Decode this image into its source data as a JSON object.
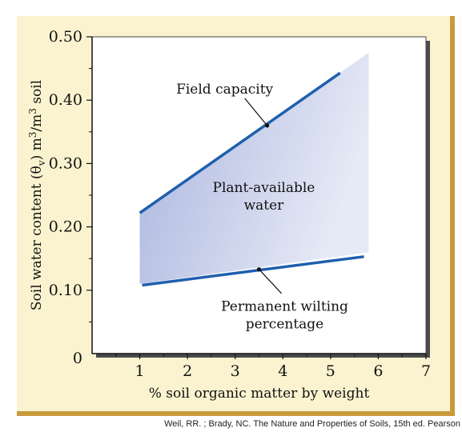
{
  "chart_data": {
    "type": "area",
    "title": "",
    "xlabel": "% soil organic matter by weight",
    "ylabel_parts": [
      "Soil water content (",
      "θ",
      "v",
      ") m",
      "3",
      "/m",
      "3",
      " soil"
    ],
    "xlim": [
      0,
      7
    ],
    "ylim": [
      0,
      0.5
    ],
    "x_ticks": [
      1,
      2,
      3,
      4,
      5,
      6,
      7
    ],
    "y_ticks": [
      0.1,
      0.2,
      0.3,
      0.4,
      0.5
    ],
    "y_tick_labels": [
      "0.10",
      "0.20",
      "0.30",
      "0.40",
      "0.50"
    ],
    "origin_label": "0",
    "series": [
      {
        "name": "Field capacity",
        "x": [
          1,
          5.2
        ],
        "y": [
          0.222,
          0.443
        ],
        "color": "#1f5fae"
      },
      {
        "name": "Permanent wilting percentage",
        "x": [
          1.05,
          5.7
        ],
        "y": [
          0.108,
          0.153
        ],
        "color": "#1f5fae"
      }
    ],
    "shaded_region": {
      "label_lines": [
        "Plant-available",
        "water"
      ],
      "x": [
        1,
        5.8,
        5.8,
        1
      ],
      "y": [
        0.22,
        0.475,
        0.16,
        0.11
      ],
      "color_dark": "#a7b3dd",
      "color_light": "#e6eaf6"
    },
    "annotations": [
      {
        "lines": [
          "Field capacity"
        ],
        "point_x": 3.67,
        "point_y": 0.36
      },
      {
        "lines": [
          "Permanent wilting",
          "percentage"
        ],
        "point_x": 3.5,
        "point_y": 0.133
      }
    ]
  },
  "credit": "Weil, RR. ; Brady, NC. The Nature and Properties of Soils, 15th ed. Pearson"
}
